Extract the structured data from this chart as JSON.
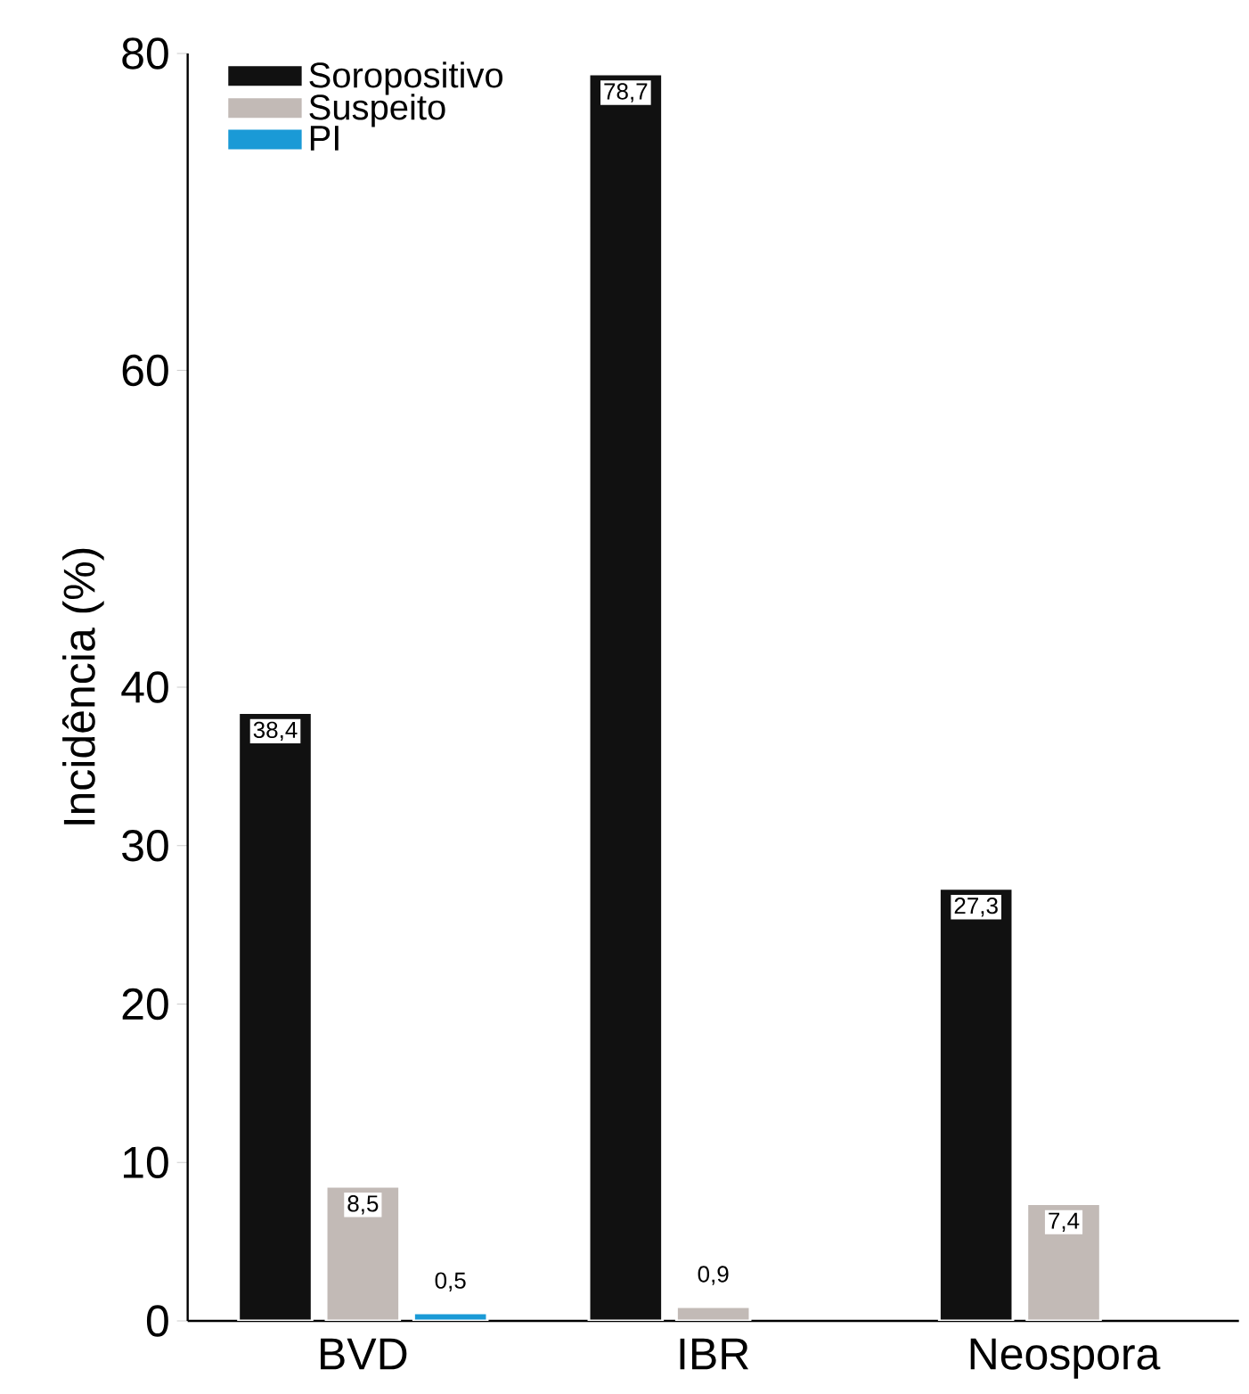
{
  "chart_data": {
    "type": "bar",
    "ylabel": "Incidência (%)",
    "categories": [
      "BVD",
      "IBR",
      "Neospora"
    ],
    "series": [
      {
        "name": "Soropositivo",
        "color": "#111111",
        "values": [
          38.4,
          78.7,
          27.3
        ],
        "value_labels": [
          "38,4",
          "78,7",
          "27,3"
        ]
      },
      {
        "name": "Suspeito",
        "color": "#c2bab6",
        "values": [
          8.5,
          0.9,
          7.4
        ],
        "value_labels": [
          "8,5",
          "0,9",
          "7,4"
        ]
      },
      {
        "name": "PI",
        "color": "#1a9ad6",
        "values": [
          0.5,
          null,
          null
        ],
        "value_labels": [
          "0,5",
          null,
          null
        ]
      }
    ],
    "ylim": [
      0,
      80
    ],
    "yticks": [
      0,
      10,
      20,
      30,
      40,
      60,
      80
    ],
    "legend": "top left"
  }
}
